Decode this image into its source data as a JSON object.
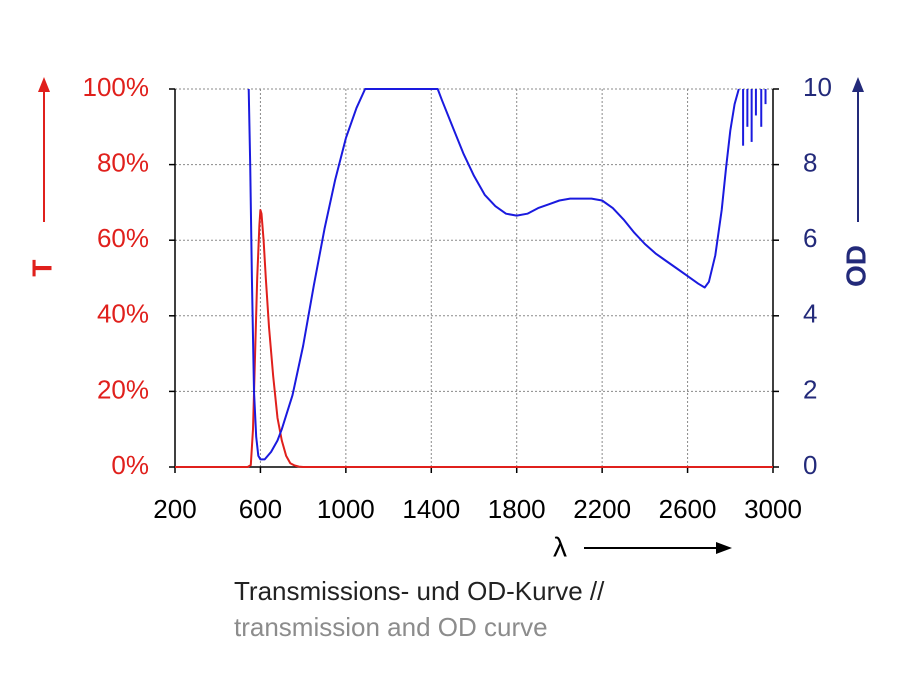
{
  "colors": {
    "transmission": "#e0201c",
    "od": "#1a1adf",
    "od_axis": "#232a7a",
    "grid": "#8a8a8a",
    "axis": "#000000"
  },
  "caption": {
    "line1": "Transmissions- und OD-Kurve //",
    "line2": "transmission and OD curve"
  },
  "chart_data": {
    "type": "line",
    "title": "",
    "xlabel": "λ",
    "ylabel_left": "T",
    "ylabel_right": "OD",
    "xlim": [
      200,
      3000
    ],
    "ylim_left": [
      0,
      100
    ],
    "ylim_right": [
      0,
      10
    ],
    "grid": true,
    "x_ticks": [
      200,
      600,
      1000,
      1400,
      1800,
      2200,
      2600,
      3000
    ],
    "y_left_ticks": [
      0,
      20,
      40,
      60,
      80,
      100
    ],
    "y_left_tick_labels": [
      "0%",
      "20%",
      "40%",
      "60%",
      "80%",
      "100%"
    ],
    "y_right_ticks": [
      0,
      2,
      4,
      6,
      8,
      10
    ],
    "series": [
      {
        "axis": "left",
        "x": [
          200,
          540,
          555,
          565,
          575,
          585,
          595,
          600,
          605,
          615,
          625,
          640,
          660,
          680,
          700,
          720,
          740,
          760,
          780,
          800,
          900,
          3000
        ],
        "y": [
          0,
          0,
          0.5,
          10,
          30,
          50,
          64,
          68,
          67,
          60,
          50,
          37,
          24,
          13,
          7,
          3,
          1,
          0.4,
          0.1,
          0,
          0,
          0
        ]
      },
      {
        "axis": "right",
        "x": [
          545,
          552,
          560,
          570,
          580,
          590,
          600,
          620,
          650,
          680,
          700,
          750,
          800,
          850,
          900,
          950,
          1000,
          1050,
          1090,
          1430,
          1450,
          1500,
          1550,
          1600,
          1650,
          1700,
          1750,
          1800,
          1850,
          1900,
          1950,
          2000,
          2050,
          2100,
          2150,
          2200,
          2250,
          2300,
          2350,
          2400,
          2450,
          2500,
          2550,
          2600,
          2650,
          2680,
          2700,
          2730,
          2760,
          2780,
          2800,
          2820,
          2840
        ],
        "y": [
          10,
          8,
          5,
          2,
          0.8,
          0.3,
          0.2,
          0.2,
          0.4,
          0.7,
          1.0,
          1.9,
          3.2,
          4.8,
          6.3,
          7.6,
          8.7,
          9.5,
          10,
          10,
          9.7,
          9.0,
          8.3,
          7.7,
          7.2,
          6.9,
          6.7,
          6.65,
          6.7,
          6.85,
          6.95,
          7.05,
          7.1,
          7.1,
          7.1,
          7.05,
          6.85,
          6.55,
          6.2,
          5.9,
          5.65,
          5.45,
          5.25,
          5.05,
          4.85,
          4.75,
          4.9,
          5.6,
          6.8,
          7.9,
          8.9,
          9.6,
          10
        ]
      }
    ]
  }
}
